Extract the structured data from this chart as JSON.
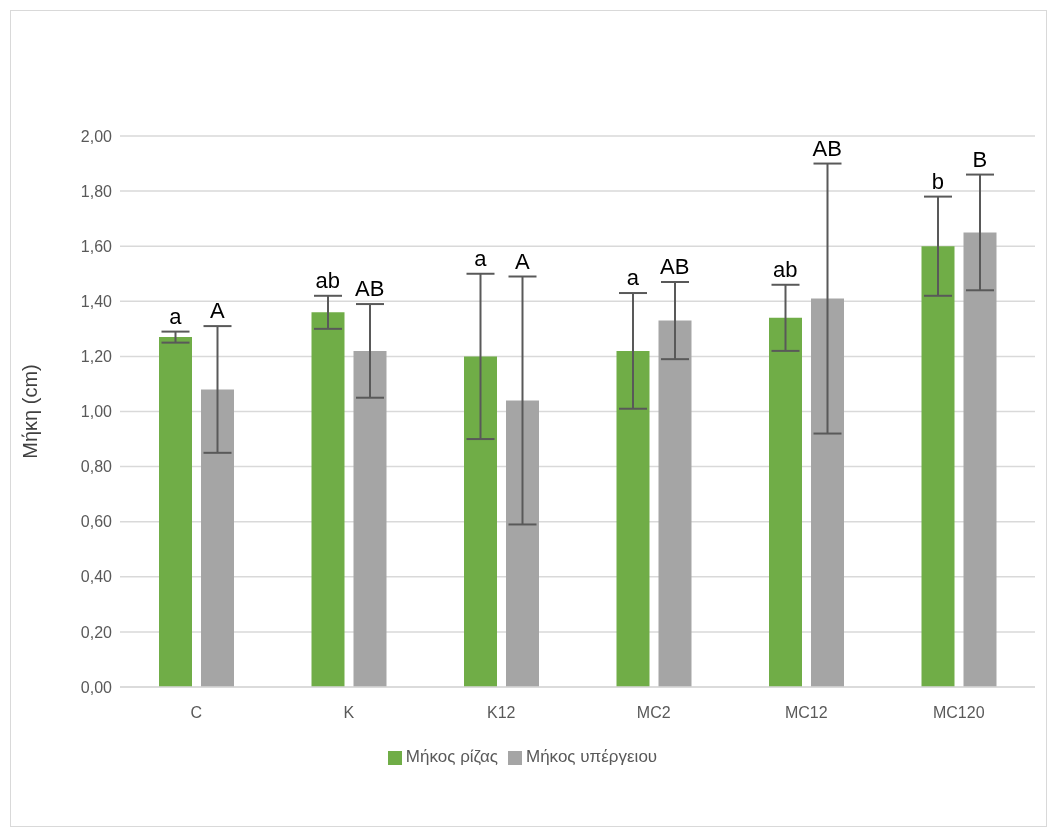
{
  "chart_data": {
    "type": "bar",
    "ylabel": "Μήκη (cm)",
    "categories": [
      "C",
      "K",
      "K12",
      "MC2",
      "MC12",
      "MC120"
    ],
    "series": [
      {
        "name": "Μήκος ρίζας",
        "color": "#70ad47",
        "values": [
          1.27,
          1.36,
          1.2,
          1.22,
          1.34,
          1.6
        ],
        "errors": [
          0.02,
          0.06,
          0.3,
          0.21,
          0.12,
          0.18
        ]
      },
      {
        "name": "Μήκος υπέργειου",
        "color": "#a5a5a5",
        "values": [
          1.08,
          1.22,
          1.04,
          1.33,
          1.41,
          1.65
        ],
        "errors": [
          0.23,
          0.17,
          0.45,
          0.14,
          0.49,
          0.21
        ]
      }
    ],
    "annotations": [
      "a",
      "A",
      "ab",
      "AB",
      "a",
      "A",
      "a",
      "AB",
      "ab",
      "AB",
      "b",
      "B"
    ],
    "ylim": [
      0,
      2
    ],
    "yticks": [
      {
        "value": 0,
        "label": "0,00"
      },
      {
        "value": 0.2,
        "label": "0,20"
      },
      {
        "value": 0.4,
        "label": "0,40"
      },
      {
        "value": 0.6,
        "label": "0,60"
      },
      {
        "value": 0.8,
        "label": "0,80"
      },
      {
        "value": 1,
        "label": "1,00"
      },
      {
        "value": 1.2,
        "label": "1,20"
      },
      {
        "value": 1.4,
        "label": "1,40"
      },
      {
        "value": 1.6,
        "label": "1,60"
      },
      {
        "value": 1.8,
        "label": "1,80"
      },
      {
        "value": 2,
        "label": "2,00"
      }
    ],
    "grid": "y",
    "legend": "bottom"
  }
}
